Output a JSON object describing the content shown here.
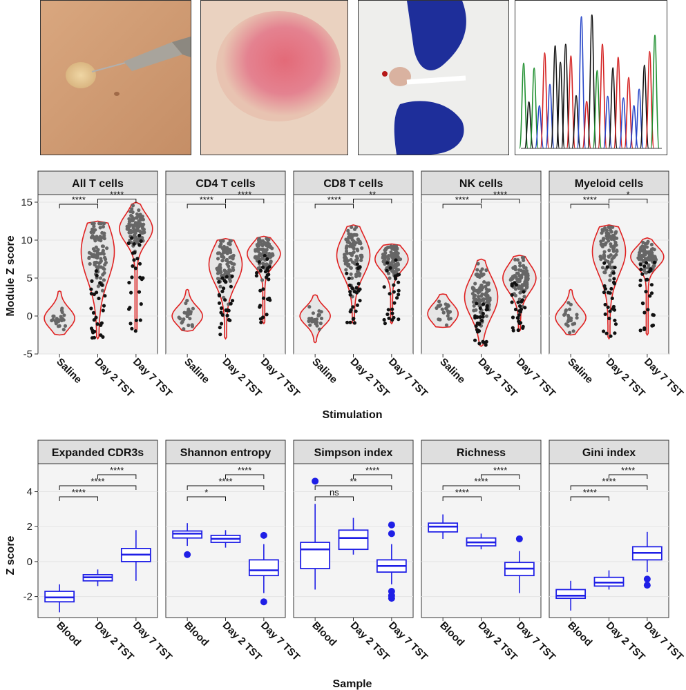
{
  "photos": [
    {
      "name": "photo-intradermal-injection",
      "label": ""
    },
    {
      "name": "photo-skin-induration",
      "label": ""
    },
    {
      "name": "photo-skin-biopsy",
      "label": ""
    },
    {
      "name": "photo-sequencing-chromatogram",
      "label": ""
    }
  ],
  "colors": {
    "violin_line": "#e02020",
    "violin_fill": "#e6e6e6",
    "point_gray": "#666666",
    "point_black": "#111111",
    "box": "#1f1fe6",
    "panel_bg": "#f4f4f4",
    "strip_bg": "#dedede"
  },
  "chart_data": [
    {
      "type": "violin",
      "ylabel": "Module Z score",
      "xlabel": "Stimulation",
      "ylim": [
        -5,
        16
      ],
      "yticks": [
        -5,
        0,
        5,
        10,
        15
      ],
      "categories": [
        "Saline",
        "Day 2 TST",
        "Day 7 TST"
      ],
      "facets": [
        {
          "title": "All T cells",
          "groups": [
            {
              "median": -0.3,
              "min": -2.5,
              "max": 3.3,
              "q1": -1.0,
              "q3": 0.8
            },
            {
              "median": 8.5,
              "min": -3.0,
              "max": 12.5,
              "q1": 5.0,
              "q3": 10.0
            },
            {
              "median": 11.5,
              "min": -2.0,
              "max": 15.0,
              "q1": 10.0,
              "q3": 12.5
            }
          ],
          "sig": [
            {
              "from": 0,
              "to": 1,
              "label": "****",
              "level": 0
            },
            {
              "from": 1,
              "to": 2,
              "label": "****",
              "level": 1
            }
          ]
        },
        {
          "title": "CD4 T cells",
          "groups": [
            {
              "median": 0.0,
              "min": -2.0,
              "max": 3.5,
              "q1": -0.7,
              "q3": 1.0
            },
            {
              "median": 6.8,
              "min": -3.0,
              "max": 10.2,
              "q1": 4.5,
              "q3": 8.0
            },
            {
              "median": 8.2,
              "min": -1.0,
              "max": 10.5,
              "q1": 7.0,
              "q3": 9.0
            }
          ],
          "sig": [
            {
              "from": 0,
              "to": 1,
              "label": "****",
              "level": 0
            },
            {
              "from": 1,
              "to": 2,
              "label": "****",
              "level": 1
            }
          ]
        },
        {
          "title": "CD8 T cells",
          "groups": [
            {
              "median": 0.0,
              "min": -3.5,
              "max": 2.8,
              "q1": -0.8,
              "q3": 0.8
            },
            {
              "median": 8.0,
              "min": -1.0,
              "max": 12.0,
              "q1": 6.0,
              "q3": 9.5
            },
            {
              "median": 7.5,
              "min": -1.0,
              "max": 9.5,
              "q1": 6.5,
              "q3": 8.5
            }
          ],
          "sig": [
            {
              "from": 0,
              "to": 1,
              "label": "****",
              "level": 0
            },
            {
              "from": 1,
              "to": 2,
              "label": "**",
              "level": 1
            }
          ]
        },
        {
          "title": "NK cells",
          "groups": [
            {
              "median": 0.3,
              "min": -1.5,
              "max": 2.9,
              "q1": -0.6,
              "q3": 1.2
            },
            {
              "median": 2.5,
              "min": -4.0,
              "max": 7.5,
              "q1": 1.0,
              "q3": 4.5
            },
            {
              "median": 5.0,
              "min": -2.0,
              "max": 8.0,
              "q1": 3.5,
              "q3": 6.0
            }
          ],
          "sig": [
            {
              "from": 0,
              "to": 1,
              "label": "****",
              "level": 0
            },
            {
              "from": 1,
              "to": 2,
              "label": "****",
              "level": 1
            }
          ]
        },
        {
          "title": "Myeloid cells",
          "groups": [
            {
              "median": -0.2,
              "min": -2.5,
              "max": 3.5,
              "q1": -1.0,
              "q3": 0.8
            },
            {
              "median": 8.5,
              "min": -3.0,
              "max": 12.0,
              "q1": 6.0,
              "q3": 10.0
            },
            {
              "median": 7.8,
              "min": -2.5,
              "max": 10.3,
              "q1": 7.0,
              "q3": 8.8
            }
          ],
          "sig": [
            {
              "from": 0,
              "to": 1,
              "label": "****",
              "level": 0
            },
            {
              "from": 1,
              "to": 2,
              "label": "*",
              "level": 1
            }
          ]
        }
      ]
    },
    {
      "type": "box",
      "ylabel": "Z score",
      "xlabel": "Sample",
      "ylim": [
        -3.2,
        5.6
      ],
      "yticks": [
        -2,
        0,
        2,
        4
      ],
      "categories": [
        "Blood",
        "Day 2 TST",
        "Day 7 TST"
      ],
      "facets": [
        {
          "title": "Expanded CDR3s",
          "groups": [
            {
              "q1": -2.3,
              "median": -2.05,
              "q3": -1.7,
              "low": -2.9,
              "high": -1.3,
              "outliers": []
            },
            {
              "q1": -1.1,
              "median": -0.9,
              "q3": -0.75,
              "low": -1.4,
              "high": -0.45,
              "outliers": []
            },
            {
              "q1": 0.0,
              "median": 0.4,
              "q3": 0.75,
              "low": -1.1,
              "high": 1.8,
              "outliers": []
            }
          ],
          "sig": [
            {
              "from": 1,
              "to": 2,
              "label": "****",
              "level": 2
            },
            {
              "from": 0,
              "to": 2,
              "label": "****",
              "level": 1
            },
            {
              "from": 0,
              "to": 1,
              "label": "****",
              "level": 0
            }
          ]
        },
        {
          "title": "Shannon entropy",
          "groups": [
            {
              "q1": 1.35,
              "median": 1.6,
              "q3": 1.75,
              "low": 0.9,
              "high": 2.2,
              "outliers": [
                0.4
              ]
            },
            {
              "q1": 1.1,
              "median": 1.3,
              "q3": 1.5,
              "low": 0.8,
              "high": 1.8,
              "outliers": []
            },
            {
              "q1": -0.8,
              "median": -0.5,
              "q3": 0.1,
              "low": -1.8,
              "high": 1.0,
              "outliers": [
                1.5,
                -2.3
              ]
            }
          ],
          "sig": [
            {
              "from": 1,
              "to": 2,
              "label": "****",
              "level": 2
            },
            {
              "from": 0,
              "to": 2,
              "label": "****",
              "level": 1
            },
            {
              "from": 0,
              "to": 1,
              "label": "*",
              "level": 0
            }
          ]
        },
        {
          "title": "Simpson index",
          "groups": [
            {
              "q1": -0.4,
              "median": 0.7,
              "q3": 1.1,
              "low": -1.6,
              "high": 3.3,
              "outliers": [
                4.6
              ]
            },
            {
              "q1": 0.7,
              "median": 1.35,
              "q3": 1.8,
              "low": 0.4,
              "high": 2.5,
              "outliers": []
            },
            {
              "q1": -0.6,
              "median": -0.25,
              "q3": 0.1,
              "low": -1.3,
              "high": 1.0,
              "outliers": [
                2.1,
                1.6,
                -1.7,
                -1.95,
                -2.1
              ]
            }
          ],
          "sig": [
            {
              "from": 1,
              "to": 2,
              "label": "****",
              "level": 2
            },
            {
              "from": 0,
              "to": 2,
              "label": "**",
              "level": 1
            },
            {
              "from": 0,
              "to": 1,
              "label": "ns",
              "level": 0
            }
          ]
        },
        {
          "title": "Richness",
          "groups": [
            {
              "q1": 1.7,
              "median": 2.0,
              "q3": 2.2,
              "low": 1.3,
              "high": 2.7,
              "outliers": []
            },
            {
              "q1": 0.9,
              "median": 1.1,
              "q3": 1.35,
              "low": 0.7,
              "high": 1.6,
              "outliers": []
            },
            {
              "q1": -0.8,
              "median": -0.4,
              "q3": -0.05,
              "low": -1.8,
              "high": 0.6,
              "outliers": [
                1.3
              ]
            }
          ],
          "sig": [
            {
              "from": 1,
              "to": 2,
              "label": "****",
              "level": 2
            },
            {
              "from": 0,
              "to": 2,
              "label": "****",
              "level": 1
            },
            {
              "from": 0,
              "to": 1,
              "label": "****",
              "level": 0
            }
          ]
        },
        {
          "title": "Gini index",
          "groups": [
            {
              "q1": -2.1,
              "median": -1.95,
              "q3": -1.6,
              "low": -2.8,
              "high": -1.1,
              "outliers": []
            },
            {
              "q1": -1.4,
              "median": -1.2,
              "q3": -0.9,
              "low": -1.6,
              "high": -0.5,
              "outliers": []
            },
            {
              "q1": 0.1,
              "median": 0.5,
              "q3": 0.85,
              "low": -0.6,
              "high": 1.7,
              "outliers": [
                -1.0,
                -1.35
              ]
            }
          ],
          "sig": [
            {
              "from": 1,
              "to": 2,
              "label": "****",
              "level": 2
            },
            {
              "from": 0,
              "to": 2,
              "label": "****",
              "level": 1
            },
            {
              "from": 0,
              "to": 1,
              "label": "****",
              "level": 0
            }
          ]
        }
      ]
    }
  ]
}
